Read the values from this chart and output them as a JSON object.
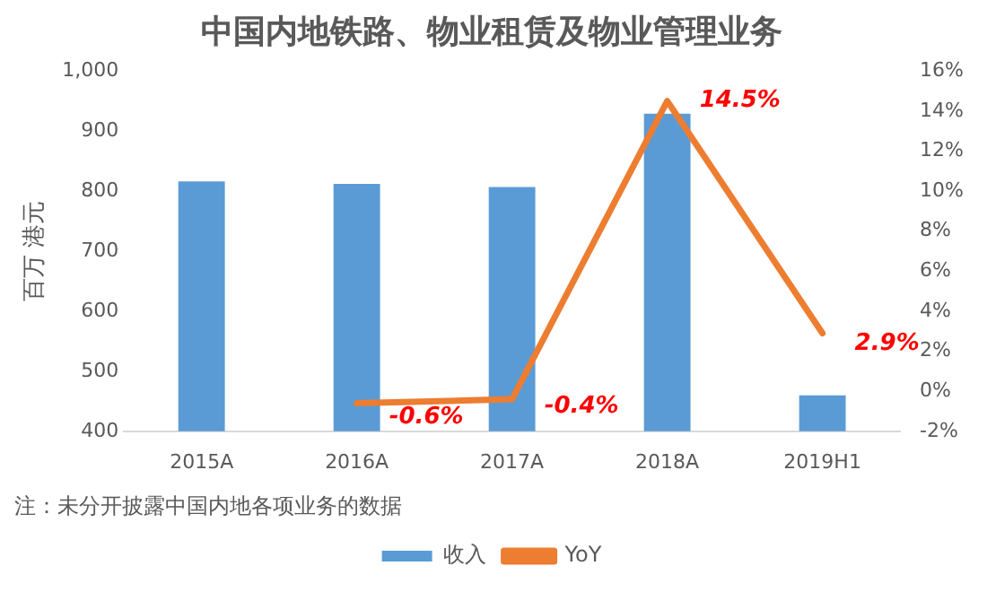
{
  "chart_data": {
    "type": "bar",
    "title": "中国内地铁路、物业租赁及物业管理业务",
    "ylabel": "百万 港元",
    "categories": [
      "2015A",
      "2016A",
      "2017A",
      "2018A",
      "2019H1"
    ],
    "series": [
      {
        "name": "收入",
        "color": "#5b9bd5",
        "values": [
          816,
          812,
          807,
          929,
          460
        ]
      },
      {
        "name": "YoY",
        "type": "line",
        "axis": "y2",
        "color": "#ed7d31",
        "values": [
          null,
          -0.6,
          -0.4,
          14.5,
          2.9
        ],
        "value_labels": [
          null,
          "-0.6%",
          "-0.4%",
          "14.5%",
          "2.9%"
        ]
      }
    ],
    "ylim": [
      400,
      1000
    ],
    "yticks": [
      400,
      500,
      600,
      700,
      800,
      900,
      {
        "value": 1000,
        "label": "1,000"
      }
    ],
    "y2lim": [
      -2,
      16
    ],
    "y2ticks": [
      {
        "value": -2,
        "label": "-2%"
      },
      {
        "value": 0,
        "label": "0%"
      },
      {
        "value": 2,
        "label": "2%"
      },
      {
        "value": 4,
        "label": "4%"
      },
      {
        "value": 6,
        "label": "6%"
      },
      {
        "value": 8,
        "label": "8%"
      },
      {
        "value": 10,
        "label": "10%"
      },
      {
        "value": 12,
        "label": "12%"
      },
      {
        "value": 14,
        "label": "14%"
      },
      {
        "value": 16,
        "label": "16%"
      }
    ],
    "grid": false,
    "legend": "bottom",
    "marker": "none",
    "line_style": "solid",
    "annotations": [
      "注：未分开披露中国内地各项业务的数据"
    ]
  }
}
